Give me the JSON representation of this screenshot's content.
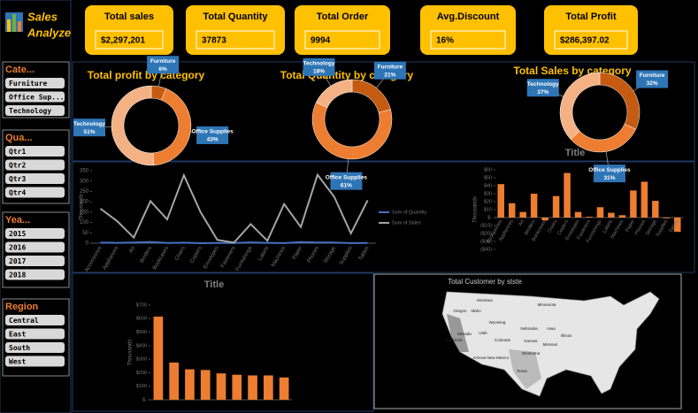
{
  "logo": [
    "Sales",
    "Analyze"
  ],
  "kpis": [
    {
      "label": "Total sales",
      "value": "$2,297,201"
    },
    {
      "label": "Total Quantity",
      "value": "37873"
    },
    {
      "label": "Total Order",
      "value": "9994"
    },
    {
      "label": "Avg.Discount",
      "value": "16%"
    },
    {
      "label": "Total Profit",
      "value": "$286,397.02"
    }
  ],
  "slicers": [
    {
      "title": "Cate...",
      "items": [
        "Furniture",
        "Office Sup...",
        "Technology"
      ]
    },
    {
      "title": "Qua...",
      "items": [
        "Qtr1",
        "Qtr2",
        "Qtr3",
        "Qtr4"
      ]
    },
    {
      "title": "Yea...",
      "items": [
        "2015",
        "2016",
        "2017",
        "2018"
      ]
    },
    {
      "title": "Region",
      "items": [
        "Central",
        "East",
        "South",
        "West"
      ]
    }
  ],
  "chart_data": [
    {
      "type": "pie",
      "title": "Total profit by category",
      "categories": [
        "Furniture",
        "Office Supplies",
        "Technology"
      ],
      "values": [
        6,
        43,
        51
      ],
      "value_labels": [
        "6%",
        "43%",
        "51%"
      ],
      "colors": [
        "#c55a11",
        "#ed7d31",
        "#f4b183"
      ]
    },
    {
      "type": "pie",
      "title": "Total Quantity by category",
      "categories": [
        "Furniture",
        "Office Supplies",
        "Technology"
      ],
      "values": [
        21,
        61,
        18
      ],
      "value_labels": [
        "21%",
        "61%",
        "18%"
      ],
      "colors": [
        "#c55a11",
        "#ed7d31",
        "#f4b183"
      ]
    },
    {
      "type": "pie",
      "title": "Total Sales by category",
      "categories": [
        "Furniture",
        "Office Supplies",
        "Technology"
      ],
      "values": [
        32,
        31,
        37
      ],
      "value_labels": [
        "32%",
        "31%",
        "37%"
      ],
      "colors": [
        "#c55a11",
        "#ed7d31",
        "#f4b183"
      ]
    },
    {
      "type": "line",
      "y_label": "Thousands",
      "categories": [
        "Accessories",
        "Appliances",
        "Art",
        "Binders",
        "Bookcases",
        "Chairs",
        "Copiers",
        "Envelopes",
        "Fasteners",
        "Furnishings",
        "Labels",
        "Machines",
        "Paper",
        "Phones",
        "Storage",
        "Supplies",
        "Tables"
      ],
      "series": [
        {
          "name": "Sum of Quantity",
          "color": "#4472c4",
          "values": [
            2.9,
            1.7,
            3,
            5.9,
            0.9,
            2.4,
            0.2,
            0.9,
            0.9,
            3.6,
            1.4,
            0.4,
            5.2,
            3.3,
            3.2,
            0.6,
            1.2
          ]
        },
        {
          "name": "Sum of Sales",
          "color": "#a5a5a5",
          "values": [
            167,
            107,
            27,
            203,
            115,
            328,
            150,
            16,
            3,
            92,
            12,
            189,
            78,
            330,
            224,
            47,
            207
          ]
        }
      ],
      "ylim": [
        0,
        350
      ],
      "yticks": [
        0,
        50,
        100,
        150,
        200,
        250,
        300,
        350
      ]
    },
    {
      "type": "bar",
      "title": "Title",
      "y_label": "Thousands",
      "categories": [
        "Accessories",
        "Appliances",
        "Art",
        "Binders",
        "Bookcases",
        "Chairs",
        "Copiers",
        "Envelopes",
        "Fasteners",
        "Furnishings",
        "Labels",
        "Machines",
        "Paper",
        "Phones",
        "Storage",
        "Supplies",
        "Tables"
      ],
      "values": [
        42,
        18,
        7,
        30,
        -3.5,
        27,
        56,
        7,
        1,
        13,
        6,
        3,
        34,
        45,
        21,
        -1,
        -18
      ],
      "color": "#ed7d31",
      "ylim": [
        -40,
        60
      ],
      "yticks": [
        {
          "value": -40,
          "label": "($40)"
        },
        {
          "value": -30,
          "label": "($30)"
        },
        {
          "value": -20,
          "label": "($20)"
        },
        {
          "value": -10,
          "label": "($10)"
        },
        {
          "value": 0,
          "label": "$-"
        },
        {
          "value": 10,
          "label": "$10"
        },
        {
          "value": 20,
          "label": "$20"
        },
        {
          "value": 30,
          "label": "$30"
        },
        {
          "value": 40,
          "label": "$40"
        },
        {
          "value": 50,
          "label": "$50"
        },
        {
          "value": 60,
          "label": "$60"
        }
      ]
    },
    {
      "type": "bar",
      "title": "Title",
      "y_label": "Thousands",
      "categories": [
        null,
        null,
        null,
        null,
        null,
        null,
        null,
        null,
        null
      ],
      "values": [
        615,
        275,
        225,
        220,
        195,
        185,
        180,
        180,
        165
      ],
      "color": "#ed7d31",
      "ylim": [
        0,
        700
      ],
      "yticks": [
        {
          "value": 0,
          "label": "$-"
        },
        {
          "value": 100,
          "label": "$100"
        },
        {
          "value": 200,
          "label": "$200"
        },
        {
          "value": 300,
          "label": "$300"
        },
        {
          "value": 400,
          "label": "$400"
        },
        {
          "value": 500,
          "label": "$500"
        },
        {
          "value": 600,
          "label": "$600"
        },
        {
          "value": 700,
          "label": "$700"
        }
      ]
    },
    {
      "type": "map",
      "title": "Total Customer by stste",
      "states": [
        "Oregon",
        "Idaho",
        "Wyoming",
        "Nevada",
        "Utah",
        "Colorado",
        "California",
        "Arizona",
        "New Mexico",
        "Texas",
        "Montana",
        "Kansas",
        "Nebraska",
        "Oklahoma",
        "Iowa",
        "Missouri",
        "Illinois",
        "Minnesota"
      ]
    }
  ]
}
